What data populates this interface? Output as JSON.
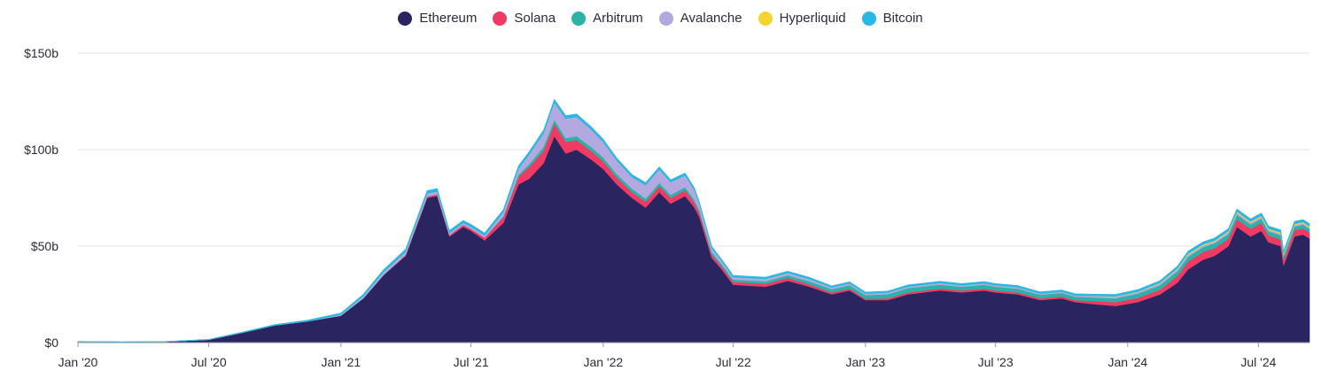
{
  "chart_data": {
    "type": "area",
    "stacked": true,
    "title": "",
    "xlabel": "",
    "ylabel": "",
    "ylim": [
      0,
      150
    ],
    "y_unit": "b",
    "y_ticks": [
      {
        "value": 0,
        "label": "$0"
      },
      {
        "value": 50,
        "label": "$50b"
      },
      {
        "value": 100,
        "label": "$100b"
      },
      {
        "value": 150,
        "label": "$150b"
      }
    ],
    "xlim": [
      "2020-01-01",
      "2024-09-10"
    ],
    "x_ticks": [
      {
        "date": "2020-01-01",
        "label": "Jan '20"
      },
      {
        "date": "2020-07-01",
        "label": "Jul '20"
      },
      {
        "date": "2021-01-01",
        "label": "Jan '21"
      },
      {
        "date": "2021-07-01",
        "label": "Jul '21"
      },
      {
        "date": "2022-01-01",
        "label": "Jan '22"
      },
      {
        "date": "2022-07-01",
        "label": "Jul '22"
      },
      {
        "date": "2023-01-01",
        "label": "Jan '23"
      },
      {
        "date": "2023-07-01",
        "label": "Jul '23"
      },
      {
        "date": "2024-01-01",
        "label": "Jan '24"
      },
      {
        "date": "2024-07-01",
        "label": "Jul '24"
      }
    ],
    "grid": true,
    "legend_position": "top-center",
    "x": [
      "2020-01-01",
      "2020-03-01",
      "2020-05-01",
      "2020-07-01",
      "2020-08-15",
      "2020-10-01",
      "2020-11-15",
      "2021-01-01",
      "2021-02-01",
      "2021-03-01",
      "2021-04-01",
      "2021-05-01",
      "2021-05-15",
      "2021-06-01",
      "2021-06-20",
      "2021-07-01",
      "2021-07-20",
      "2021-08-15",
      "2021-09-05",
      "2021-09-20",
      "2021-10-10",
      "2021-10-25",
      "2021-11-10",
      "2021-11-25",
      "2021-12-15",
      "2022-01-01",
      "2022-01-20",
      "2022-02-10",
      "2022-03-01",
      "2022-03-20",
      "2022-04-05",
      "2022-04-25",
      "2022-05-08",
      "2022-05-15",
      "2022-06-01",
      "2022-06-15",
      "2022-07-01",
      "2022-08-15",
      "2022-09-15",
      "2022-10-15",
      "2022-11-15",
      "2022-12-10",
      "2023-01-01",
      "2023-02-01",
      "2023-03-01",
      "2023-04-15",
      "2023-05-15",
      "2023-06-15",
      "2023-07-01",
      "2023-08-01",
      "2023-09-01",
      "2023-10-01",
      "2023-10-20",
      "2023-11-15",
      "2023-12-15",
      "2024-01-15",
      "2024-02-15",
      "2024-03-10",
      "2024-03-25",
      "2024-04-15",
      "2024-05-01",
      "2024-05-20",
      "2024-06-01",
      "2024-06-20",
      "2024-07-05",
      "2024-07-15",
      "2024-08-01",
      "2024-08-05",
      "2024-08-20",
      "2024-09-01",
      "2024-09-10"
    ],
    "series": [
      {
        "name": "Ethereum",
        "color": "#2a2460",
        "values": [
          0.5,
          0.3,
          0.5,
          1.5,
          5,
          9,
          11,
          14,
          23,
          35,
          45,
          75,
          76,
          55,
          60,
          58,
          53,
          62,
          82,
          85,
          93,
          107,
          98,
          100,
          95,
          90,
          82,
          75,
          70,
          78,
          72,
          76,
          70,
          65,
          44,
          38,
          30,
          29,
          32,
          29,
          25,
          27,
          22,
          22,
          25,
          27,
          26,
          27,
          26,
          25,
          22,
          23,
          21,
          20,
          19,
          21,
          25,
          31,
          38,
          43,
          45,
          50,
          60,
          55,
          58,
          52,
          50,
          40,
          55,
          56,
          54
        ]
      },
      {
        "name": "Solana",
        "color": "#ef3b63",
        "values": [
          0,
          0,
          0,
          0,
          0,
          0,
          0,
          0,
          0,
          0,
          0.5,
          0.8,
          0.8,
          0.8,
          1,
          1,
          1.5,
          3,
          4,
          6,
          6.5,
          6.5,
          6,
          5,
          4.5,
          4,
          3.5,
          3,
          3,
          3.2,
          3,
          3,
          2.5,
          2.2,
          1.8,
          1.5,
          1.5,
          1.5,
          1.5,
          1.2,
          1,
          1,
          0.7,
          1,
          1,
          1,
          1,
          1,
          1,
          1,
          1,
          1,
          1,
          1.5,
          2,
          2.2,
          2.5,
          3.5,
          4,
          4,
          4,
          3.8,
          4,
          4,
          4,
          3.5,
          3.5,
          3,
          3.2,
          3.2,
          3
        ]
      },
      {
        "name": "Arbitrum",
        "color": "#2ab3a6",
        "values": [
          0,
          0,
          0,
          0,
          0,
          0,
          0,
          0,
          0,
          0,
          0,
          0,
          0,
          0,
          0,
          0,
          0,
          0.5,
          1,
          1.5,
          2,
          2,
          2,
          2,
          2,
          2,
          1.8,
          1.8,
          1.6,
          1.6,
          1.6,
          1.6,
          1.5,
          1.4,
          1.2,
          1.2,
          1.2,
          1.3,
          1.4,
          1.6,
          1.7,
          1.8,
          2,
          2.1,
          2.2,
          2.1,
          2,
          2,
          2,
          2,
          1.8,
          1.8,
          1.8,
          1.9,
          2,
          2.2,
          2.3,
          2.5,
          2.6,
          2.5,
          2.5,
          2.5,
          2.4,
          2.3,
          2.3,
          2.2,
          2.2,
          2,
          2,
          2,
          2
        ]
      },
      {
        "name": "Avalanche",
        "color": "#b3a8df",
        "values": [
          0,
          0,
          0,
          0,
          0,
          0,
          0,
          0.5,
          1,
          1.5,
          1.5,
          1.5,
          1.5,
          1,
          1,
          1,
          1,
          2,
          3,
          5,
          7,
          9,
          10,
          10,
          9,
          8,
          7,
          6,
          7,
          7,
          6.5,
          6,
          5,
          3,
          2,
          1.5,
          1.2,
          1.2,
          1.2,
          1.1,
          0.9,
          0.9,
          0.7,
          0.8,
          0.8,
          0.8,
          0.7,
          0.7,
          0.7,
          0.7,
          0.6,
          0.6,
          0.6,
          0.7,
          0.8,
          0.8,
          0.9,
          1,
          1,
          0.9,
          0.9,
          0.9,
          0.9,
          0.9,
          0.9,
          0.8,
          0.8,
          0.7,
          0.7,
          0.7,
          0.7
        ]
      },
      {
        "name": "Hyperliquid",
        "color": "#f5d330",
        "values": [
          0,
          0,
          0,
          0,
          0,
          0,
          0,
          0,
          0,
          0,
          0,
          0,
          0,
          0,
          0,
          0,
          0,
          0,
          0,
          0,
          0,
          0,
          0,
          0,
          0,
          0,
          0,
          0,
          0,
          0,
          0,
          0,
          0,
          0,
          0,
          0,
          0,
          0,
          0,
          0,
          0,
          0,
          0,
          0,
          0,
          0,
          0,
          0,
          0,
          0,
          0,
          0,
          0,
          0.1,
          0.2,
          0.2,
          0.3,
          0.4,
          0.5,
          0.5,
          0.5,
          0.6,
          0.6,
          0.6,
          0.6,
          0.6,
          0.6,
          0.6,
          0.6,
          0.6,
          0.6
        ]
      },
      {
        "name": "Bitcoin",
        "color": "#28b8e8",
        "values": [
          0.1,
          0.1,
          0.1,
          0.2,
          0.3,
          0.4,
          0.6,
          0.8,
          1,
          1.2,
          1.4,
          1.5,
          1.5,
          1.3,
          1.3,
          1.3,
          1.3,
          1.4,
          1.5,
          1.5,
          1.6,
          1.6,
          1.6,
          1.5,
          1.5,
          1.4,
          1.3,
          1.3,
          1.3,
          1.3,
          1.3,
          1.3,
          1.2,
          1.1,
          1,
          0.9,
          0.9,
          0.9,
          0.9,
          0.9,
          0.8,
          0.8,
          0.8,
          0.8,
          0.9,
          0.9,
          0.9,
          0.9,
          0.9,
          0.9,
          0.9,
          0.9,
          0.9,
          0.9,
          1,
          1.1,
          1.1,
          1.2,
          1.3,
          1.3,
          1.3,
          1.3,
          1.3,
          1.3,
          1.3,
          1.3,
          1.3,
          1.2,
          1.3,
          1.3,
          1.3
        ]
      }
    ]
  }
}
